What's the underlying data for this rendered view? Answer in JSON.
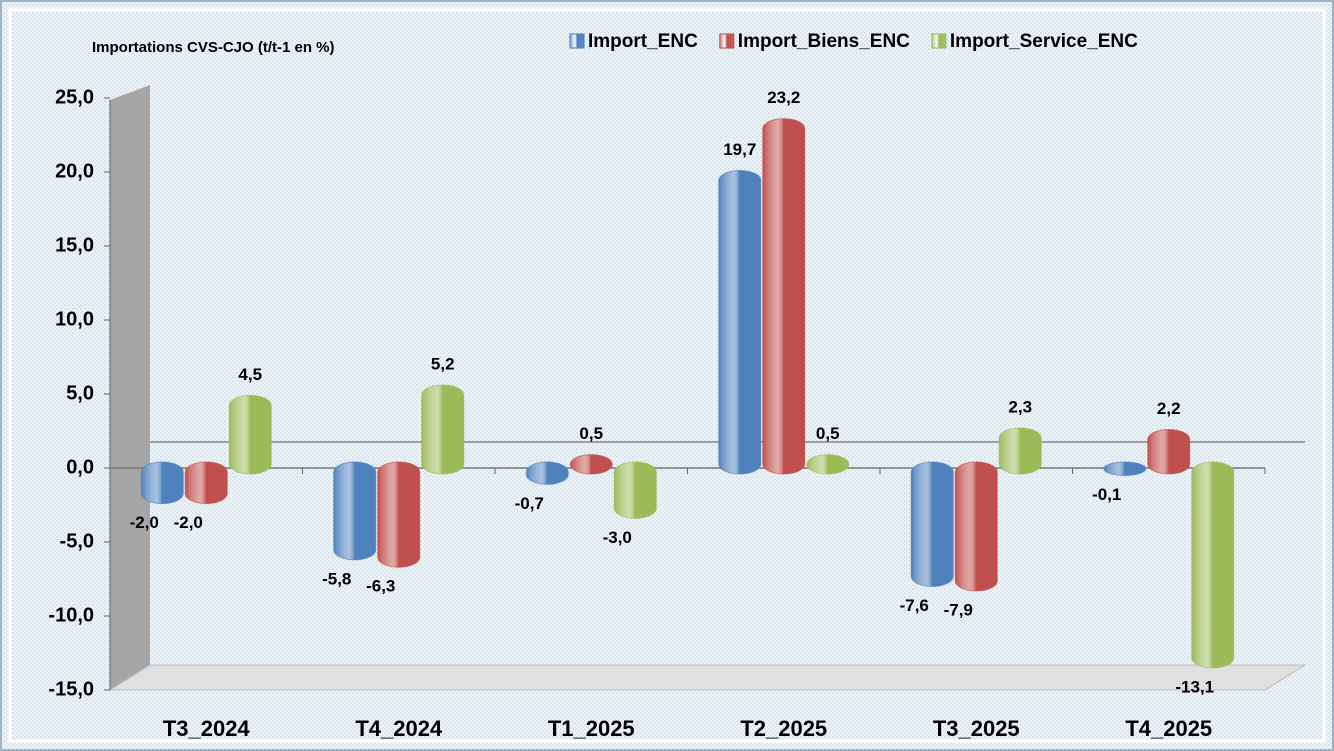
{
  "chart_data": {
    "type": "bar",
    "title": "Importations CVS-CJO (t/t-1 en %)",
    "categories": [
      "T3_2024",
      "T4_2024",
      "T1_2025",
      "T2_2025",
      "T3_2025",
      "T4_2025"
    ],
    "series": [
      {
        "name": "Import_ENC",
        "color": "#4f81bd",
        "values": [
          -2.0,
          -5.8,
          -0.7,
          19.7,
          -7.6,
          -0.1
        ],
        "value_labels": [
          "-2,0",
          "-5,8",
          "-0,7",
          "19,7",
          "-7,6",
          "-0,1"
        ]
      },
      {
        "name": "Import_Biens_ENC",
        "color": "#c0504d",
        "values": [
          -2.0,
          -6.3,
          0.5,
          23.2,
          -7.9,
          2.2
        ],
        "value_labels": [
          "-2,0",
          "-6,3",
          "0,5",
          "23,2",
          "-7,9",
          "2,2"
        ]
      },
      {
        "name": "Import_Service_ENC",
        "color": "#9bbb59",
        "values": [
          4.5,
          5.2,
          -3.0,
          0.5,
          2.3,
          -13.1
        ],
        "value_labels": [
          "4,5",
          "5,2",
          "-3,0",
          "0,5",
          "2,3",
          "-13,1"
        ]
      }
    ],
    "ylim": [
      -15,
      25
    ],
    "yticks": [
      {
        "value": -15,
        "label": "-15,0"
      },
      {
        "value": -10,
        "label": "-10,0"
      },
      {
        "value": -5,
        "label": "-5,0"
      },
      {
        "value": 0,
        "label": "0,0"
      },
      {
        "value": 5,
        "label": "5,0"
      },
      {
        "value": 10,
        "label": "10,0"
      },
      {
        "value": 15,
        "label": "15,0"
      },
      {
        "value": 20,
        "label": "20,0"
      },
      {
        "value": 25,
        "label": "25,0"
      }
    ]
  }
}
